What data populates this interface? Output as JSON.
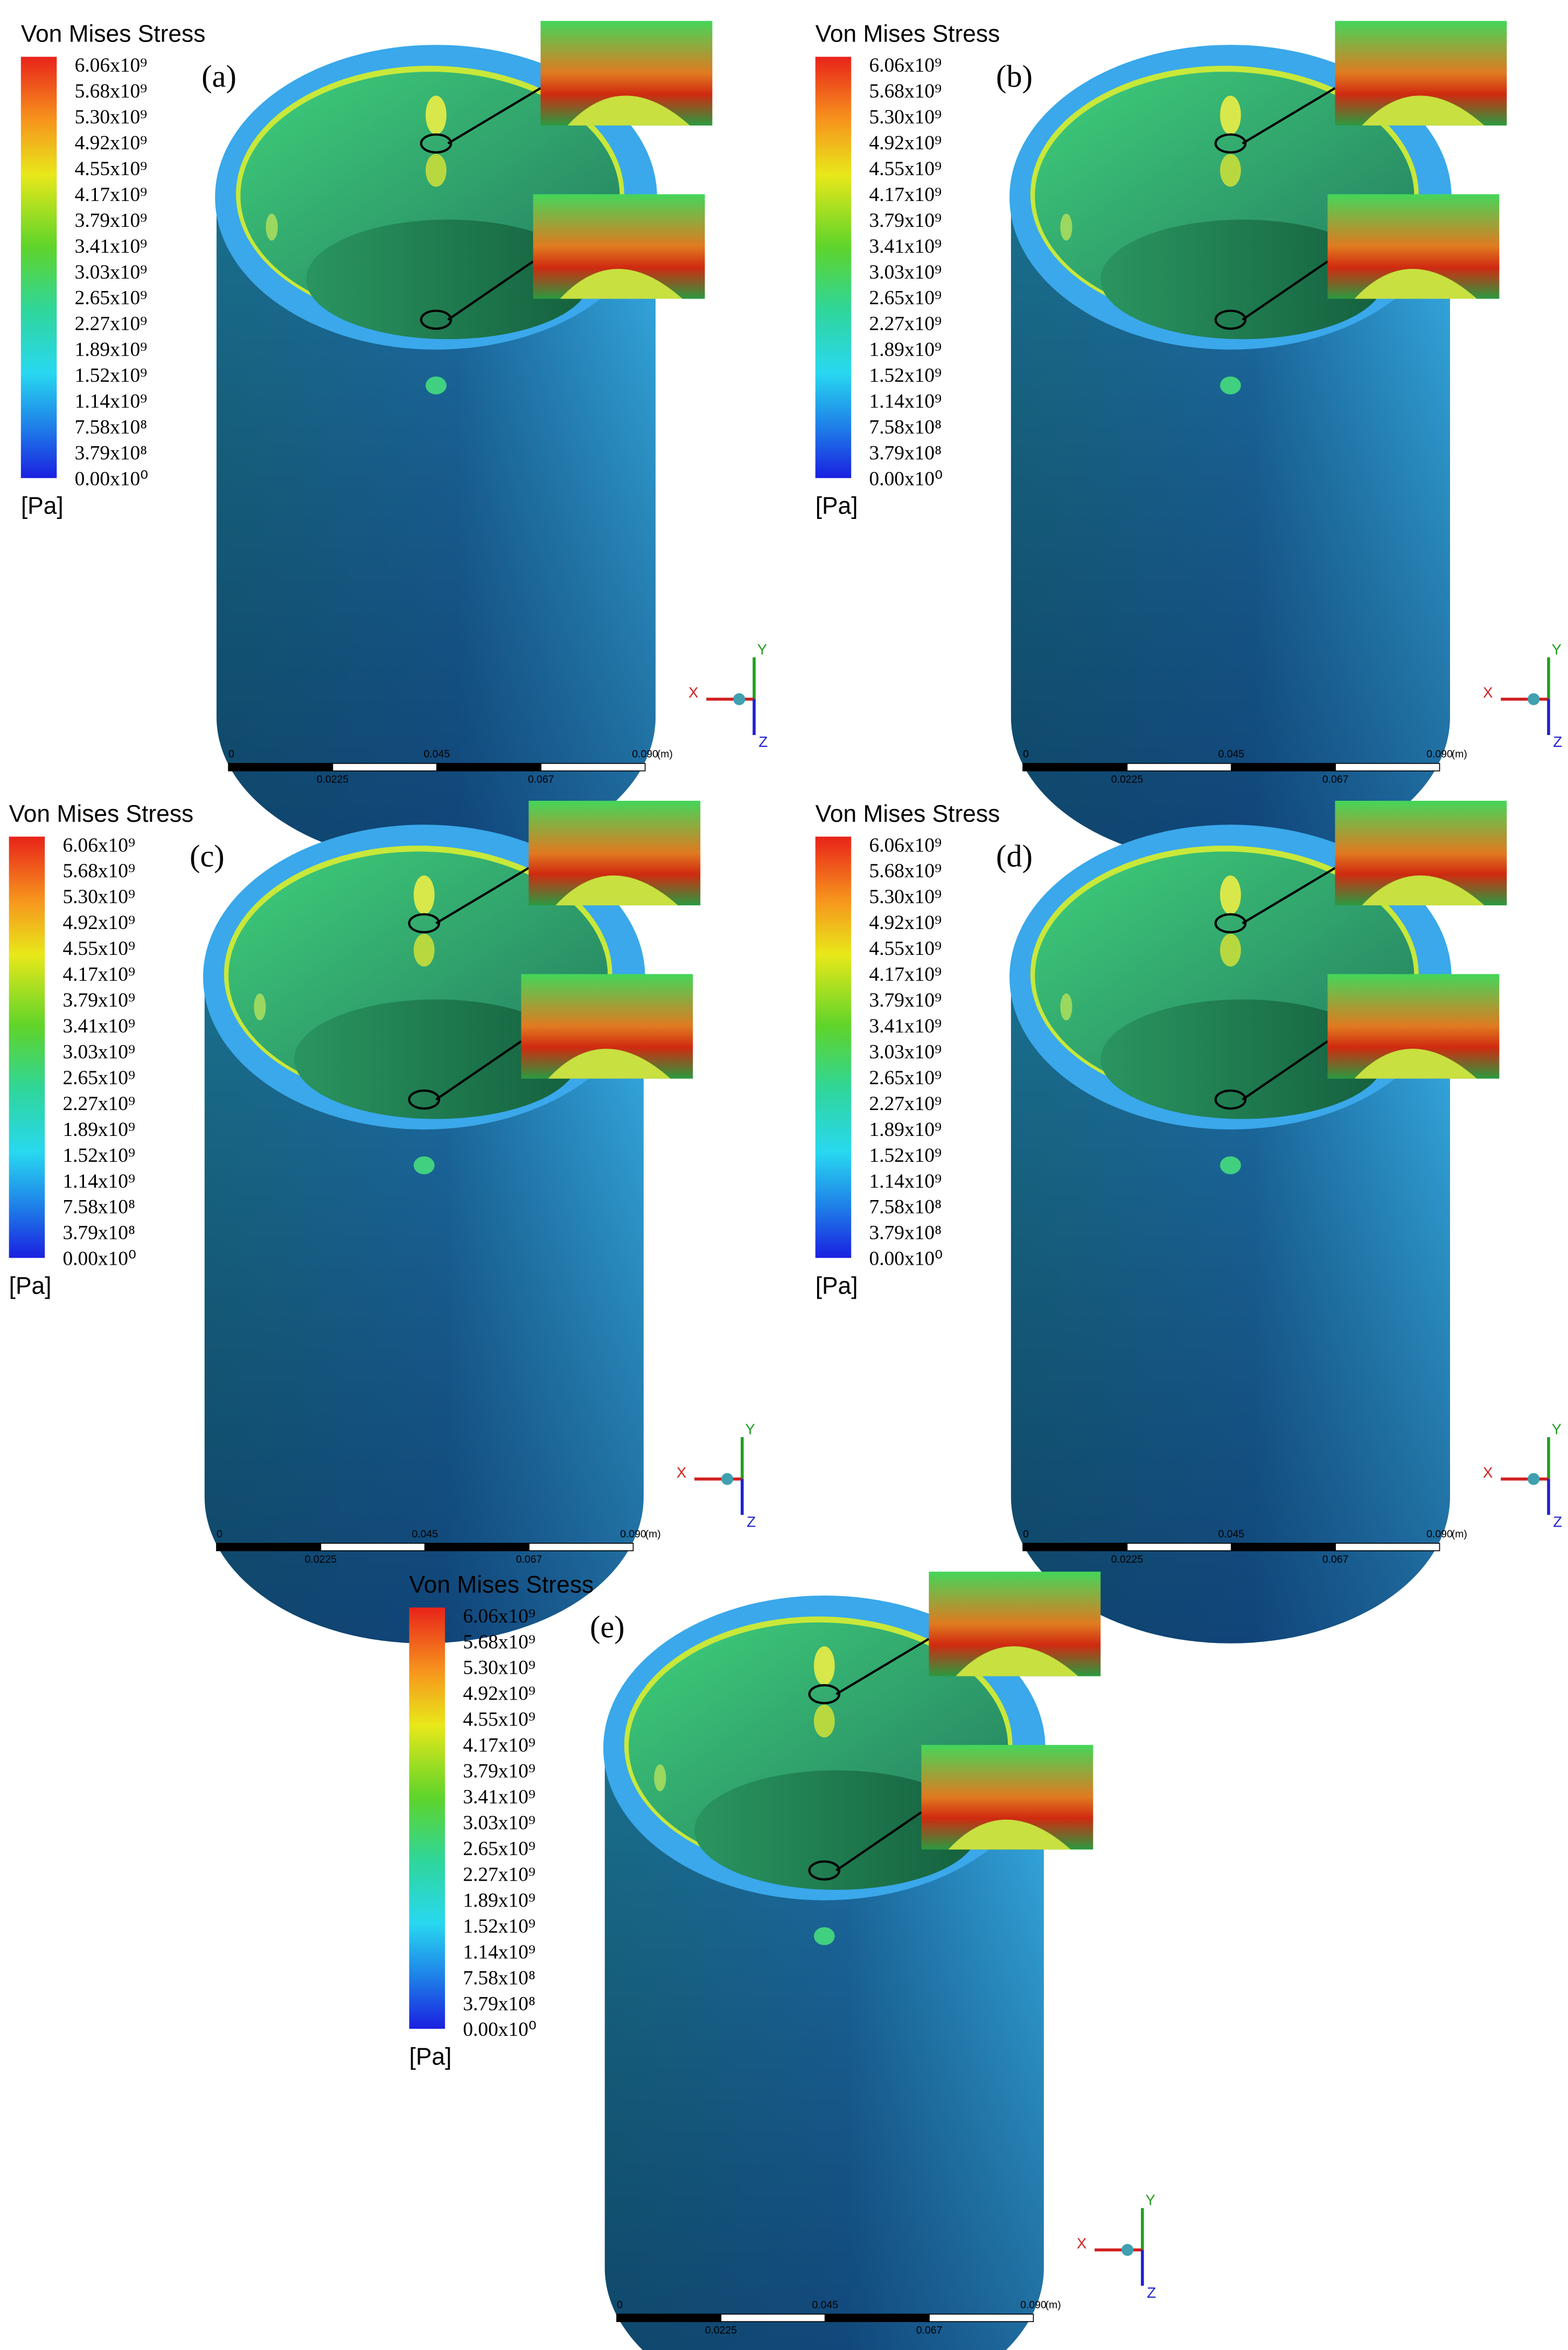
{
  "legend": {
    "title": "Von Mises Stress",
    "labels": [
      "6.06x10⁹",
      "5.68x10⁹",
      "5.30x10⁹",
      "4.92x10⁹",
      "4.55x10⁹",
      "4.17x10⁹",
      "3.79x10⁹",
      "3.41x10⁹",
      "3.03x10⁹",
      "2.65x10⁹",
      "2.27x10⁹",
      "1.89x10⁹",
      "1.52x10⁹",
      "1.14x10⁹",
      "7.58x10⁸",
      "3.79x10⁸",
      "0.00x10⁰"
    ],
    "unit": "[Pa]"
  },
  "scale_bar": {
    "top": [
      "0",
      "0.045",
      "0.090"
    ],
    "unit": "(m)",
    "bottom": [
      "0.0225",
      "0.067"
    ]
  },
  "triad": {
    "x": "X",
    "y": "Y",
    "z": "Z"
  },
  "panels": [
    {
      "label": "(a)"
    },
    {
      "label": "(b)"
    },
    {
      "label": "(c)"
    },
    {
      "label": "(d)"
    },
    {
      "label": "(e)"
    }
  ]
}
